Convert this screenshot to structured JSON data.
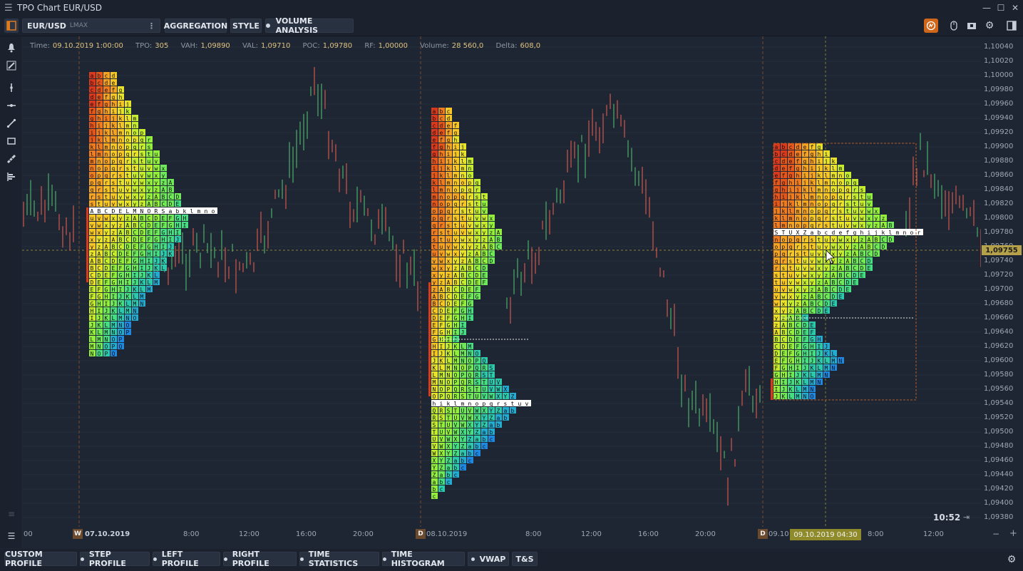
{
  "window": {
    "title": "TPO Chart EUR/USD",
    "controls": {
      "minimize": "—",
      "maximize": "☐",
      "close": "✕"
    }
  },
  "toolbar": {
    "symbol": "EUR/USD",
    "exchange": "LMAX",
    "buttons": [
      "AGGREGATION",
      "STYLE",
      "VOLUME ANALYSIS"
    ]
  },
  "info": {
    "time_label": "Time:",
    "time": "09.10.2019 1:00:00",
    "tpo_label": "TPO:",
    "tpo": "305",
    "vah_label": "VAH:",
    "vah": "1,09890",
    "val_label": "VAL:",
    "val": "1,09710",
    "poc_label": "POC:",
    "poc": "1,09780",
    "rf_label": "RF:",
    "rf": "1,00000",
    "volume_label": "Volume:",
    "volume": "28 560,0",
    "delta_label": "Delta:",
    "delta": "608,0"
  },
  "price_axis": {
    "labels": [
      "1,10040",
      "1,10020",
      "1,10000",
      "1,09980",
      "1,09960",
      "1,09940",
      "1,09920",
      "1,09900",
      "1,09880",
      "1,09860",
      "1,09840",
      "1,09820",
      "1,09800",
      "1,09780",
      "1,09760",
      "1,09740",
      "1,09720",
      "1,09700",
      "1,09680",
      "1,09660",
      "1,09640",
      "1,09620",
      "1,09600",
      "1,09580",
      "1,09560",
      "1,09540",
      "1,09520",
      "1,09500",
      "1,09480",
      "1,09460",
      "1,09440",
      "1,09420",
      "1,09400",
      "1,09380"
    ],
    "current_price": "1,09755"
  },
  "clock": "10:52",
  "time_axis": {
    "labels": [
      "00",
      "07.10.2019",
      "8:00",
      "12:00",
      "16:00",
      "20:00",
      "08.10.2019",
      "8:00",
      "12:00",
      "16:00",
      "20:00",
      "09.10",
      "8:00",
      "12:00"
    ],
    "markers": [
      "W",
      "D",
      "D"
    ],
    "crosshair_time": "09.10.2019 04:30"
  },
  "profiles": {
    "p1": {
      "poc_row": "ABCDELMNORSabklmno"
    },
    "p2": {
      "poc_row": "hiklmnopqrstuv"
    },
    "p3": {
      "poc_row": "STUXZabcdefghijklmnor"
    }
  },
  "bottom": {
    "buttons": [
      "CUSTOM PROFILE",
      "STEP PROFILE",
      "LEFT PROFILE",
      "RIGHT PROFILE",
      "TIME STATISTICS",
      "TIME HISTOGRAM",
      "VWAP",
      "T&S"
    ]
  },
  "colors": {
    "background": "#1e2633",
    "bull": "#4caf6a",
    "bear": "#d0584c",
    "accent": "#e07a1a"
  }
}
